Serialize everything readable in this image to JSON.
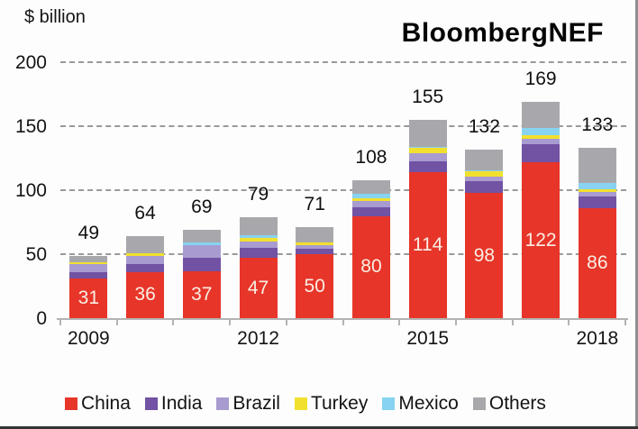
{
  "chart": {
    "unit_label": "$ billion",
    "brand": "BloombergNEF"
  },
  "chart_data": {
    "type": "bar",
    "stacked": true,
    "unit": "$ billion",
    "categories": [
      "2009",
      "2010",
      "2011",
      "2012",
      "2013",
      "2014",
      "2015",
      "2016",
      "2017",
      "2018"
    ],
    "x_axis_tick_labels": [
      "2009",
      "2012",
      "2015",
      "2018"
    ],
    "y_ticks": [
      0,
      50,
      100,
      150,
      200
    ],
    "ylim": [
      0,
      200
    ],
    "grid": "horizontal-dashed",
    "legend_position": "bottom",
    "series": [
      {
        "name": "China",
        "color": "#e73529",
        "values": [
          31,
          36,
          37,
          47,
          50,
          80,
          114,
          98,
          122,
          86
        ]
      },
      {
        "name": "India",
        "color": "#7152a3",
        "values": [
          5,
          6,
          10,
          8,
          4,
          7,
          9,
          9,
          14,
          9
        ]
      },
      {
        "name": "Brazil",
        "color": "#a89bd0",
        "values": [
          6,
          7,
          10,
          5,
          3,
          5,
          6,
          4,
          4,
          4
        ]
      },
      {
        "name": "Turkey",
        "color": "#f2e02e",
        "values": [
          2,
          2,
          0,
          3,
          2,
          2,
          4,
          4,
          3,
          2
        ]
      },
      {
        "name": "Mexico",
        "color": "#87d3f1",
        "values": [
          0,
          0,
          2,
          2,
          0,
          3,
          1,
          1,
          6,
          5
        ]
      },
      {
        "name": "Others",
        "color": "#a8a8ac",
        "values": [
          5,
          13,
          10,
          14,
          12,
          11,
          21,
          16,
          20,
          27
        ]
      }
    ],
    "total_labels": [
      49,
      64,
      69,
      79,
      71,
      108,
      155,
      132,
      169,
      133
    ],
    "inside_bar_labels": {
      "series": "China",
      "values": [
        31,
        36,
        37,
        47,
        50,
        80,
        114,
        98,
        122,
        86
      ]
    }
  },
  "legend": {
    "items": [
      "China",
      "India",
      "Brazil",
      "Turkey",
      "Mexico",
      "Others"
    ]
  }
}
